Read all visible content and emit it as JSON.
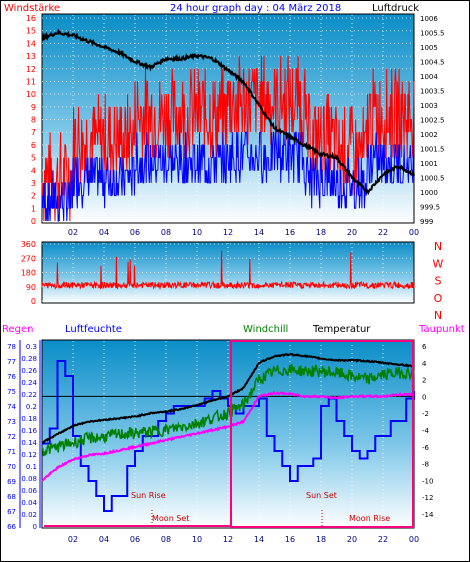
{
  "header": {
    "left_title": "Windstärke",
    "center_title": "24 hour graph day : 04 März 2018",
    "right_title": "Luftdruck"
  },
  "lower_header": {
    "regen": "Regen",
    "luftfeuchte": "Luftfeuchte",
    "windchill": "Windchill",
    "temperatur": "Temperatur",
    "taupunkt": "Taupunkt"
  },
  "annotations": {
    "sun_rise": "Sun Rise",
    "sun_set": "Sun Set",
    "moon_set": "Moon Set",
    "moon_rise": "Moon Rise"
  },
  "colors": {
    "wind_gust": "#ff0000",
    "wind_avg": "#0000ff",
    "pressure": "#000000",
    "temperature": "#000000",
    "windchill": "#008000",
    "dewpoint": "#ff00ff",
    "humidity": "#0000ff",
    "rain_axis": "#ff00ff",
    "night_box": "#ff0080"
  },
  "chart_data": [
    {
      "type": "line",
      "name": "wind-pressure",
      "y_left_ticks": [
        "16",
        "15",
        "14",
        "13",
        "12",
        "11",
        "10",
        "9",
        "8",
        "7",
        "6",
        "5",
        "4",
        "3",
        "2",
        "1",
        "0"
      ],
      "y_right_ticks": [
        "1006",
        "1005.5",
        "1005",
        "1004.5",
        "1004",
        "1003.5",
        "1003",
        "1002.5",
        "1002",
        "1001.5",
        "1001",
        "1000.5",
        "1000",
        "999.5",
        "999"
      ],
      "x_ticks": [
        "02",
        "04",
        "06",
        "08",
        "10",
        "12",
        "14",
        "16",
        "18",
        "20",
        "22",
        "00"
      ],
      "ylim_left": [
        0,
        16
      ],
      "ylim_right": [
        999,
        1006
      ],
      "pressure": {
        "hours": [
          0,
          1,
          2,
          3,
          4,
          5,
          6,
          7,
          8,
          9,
          10,
          11,
          12,
          13,
          14,
          15,
          16,
          17,
          18,
          19,
          20,
          21,
          22,
          23,
          24
        ],
        "values": [
          1005.3,
          1005.5,
          1005.4,
          1005.2,
          1005.0,
          1004.8,
          1004.5,
          1004.3,
          1004.6,
          1004.6,
          1004.7,
          1004.6,
          1004.2,
          1003.8,
          1003.0,
          1002.2,
          1001.9,
          1001.6,
          1001.3,
          1001.2,
          1000.5,
          1000.0,
          1000.6,
          1000.9,
          1000.6
        ]
      }
    },
    {
      "type": "line",
      "name": "wind-direction",
      "y_left_ticks": [
        "360",
        "270",
        "180",
        "90",
        "0"
      ],
      "y_right_ticks": [
        "N",
        "W",
        "S",
        "O",
        "N"
      ],
      "ylim": [
        0,
        360
      ],
      "typical_direction": 100
    },
    {
      "type": "line",
      "name": "temperature-humidity",
      "y_right_ticks": [
        "6",
        "4",
        "2",
        "0",
        "-2",
        "-4",
        "-6",
        "-8",
        "-10",
        "-12",
        "-14"
      ],
      "ylim_right": [
        -15,
        7
      ],
      "humidity_ticks": [
        "78",
        "77",
        "76",
        "75",
        "74",
        "73",
        "72",
        "71",
        "70",
        "69",
        "68",
        "67",
        "66"
      ],
      "rain_ticks": [
        "0.3",
        "0.28",
        "0.26",
        "0.24",
        "0.22",
        "0.2",
        "0.18",
        "0.16",
        "0.14",
        "0.12",
        "0.1",
        "0.08",
        "0.06",
        "0.04",
        "0.02",
        "0"
      ],
      "x_ticks": [
        "02",
        "04",
        "06",
        "08",
        "10",
        "12",
        "14",
        "16",
        "18",
        "20",
        "22",
        "00"
      ],
      "temperature": {
        "hours": [
          0,
          1,
          2,
          3,
          4,
          5,
          6,
          7,
          8,
          9,
          10,
          11,
          12,
          13,
          14,
          15,
          16,
          17,
          18,
          19,
          20,
          21,
          22,
          23,
          24
        ],
        "values": [
          -5.5,
          -4.5,
          -3.5,
          -3,
          -2.8,
          -2.6,
          -2.4,
          -2,
          -1.8,
          -1.5,
          -1,
          -0.5,
          0,
          1,
          4,
          4.8,
          5,
          4.8,
          4.5,
          4.3,
          4.3,
          4.2,
          4,
          3.8,
          3.6
        ]
      },
      "windchill": {
        "hours": [
          0,
          1,
          2,
          3,
          4,
          5,
          6,
          7,
          8,
          9,
          10,
          11,
          12,
          13,
          14,
          15,
          16,
          17,
          18,
          19,
          20,
          21,
          22,
          23,
          24
        ],
        "values": [
          -6.5,
          -6,
          -5.5,
          -5,
          -4.8,
          -4.5,
          -4.4,
          -4.2,
          -4,
          -3.6,
          -3.2,
          -2.6,
          -2,
          -1,
          2,
          3,
          3.2,
          3,
          3,
          2.8,
          2.4,
          2,
          2.6,
          2.8,
          2.8
        ]
      },
      "dewpoint": {
        "hours": [
          0,
          1,
          2,
          3,
          4,
          5,
          6,
          7,
          8,
          9,
          10,
          11,
          12,
          13,
          14,
          15,
          16,
          17,
          18,
          19,
          20,
          21,
          22,
          23,
          24
        ],
        "values": [
          -10,
          -8.5,
          -7.5,
          -7,
          -6.8,
          -6.4,
          -6,
          -5.6,
          -5.2,
          -4.8,
          -4.4,
          -4,
          -3.6,
          -3,
          0,
          0.4,
          0.3,
          0,
          0,
          -0.2,
          0,
          0,
          0,
          0.2,
          0.3
        ]
      },
      "humidity": {
        "hours": [
          0,
          0.5,
          1,
          1.5,
          2,
          2.5,
          3,
          3.5,
          4,
          4.5,
          5,
          5.5,
          6,
          6.5,
          7,
          7.5,
          8,
          8.5,
          9,
          9.5,
          10,
          10.5,
          11,
          11.5,
          12,
          12.5,
          13,
          13.5,
          14,
          14.5,
          15,
          15.5,
          16,
          16.5,
          17,
          17.5,
          18,
          18.5,
          19,
          19.5,
          20,
          20.5,
          21,
          21.5,
          22,
          22.5,
          23,
          23.5,
          24
        ],
        "values": [
          71.5,
          72.5,
          77,
          76,
          72,
          70,
          69,
          68,
          67,
          68,
          68,
          70,
          71,
          72,
          72,
          73,
          73.5,
          74,
          74,
          74,
          74,
          74.5,
          75,
          74.5,
          74,
          73.5,
          74,
          74,
          74.5,
          72,
          71,
          70,
          69,
          70,
          70,
          70.5,
          74,
          74.5,
          73,
          72,
          71,
          70.5,
          71,
          72,
          72,
          73,
          73,
          74.5,
          75
        ]
      }
    }
  ]
}
